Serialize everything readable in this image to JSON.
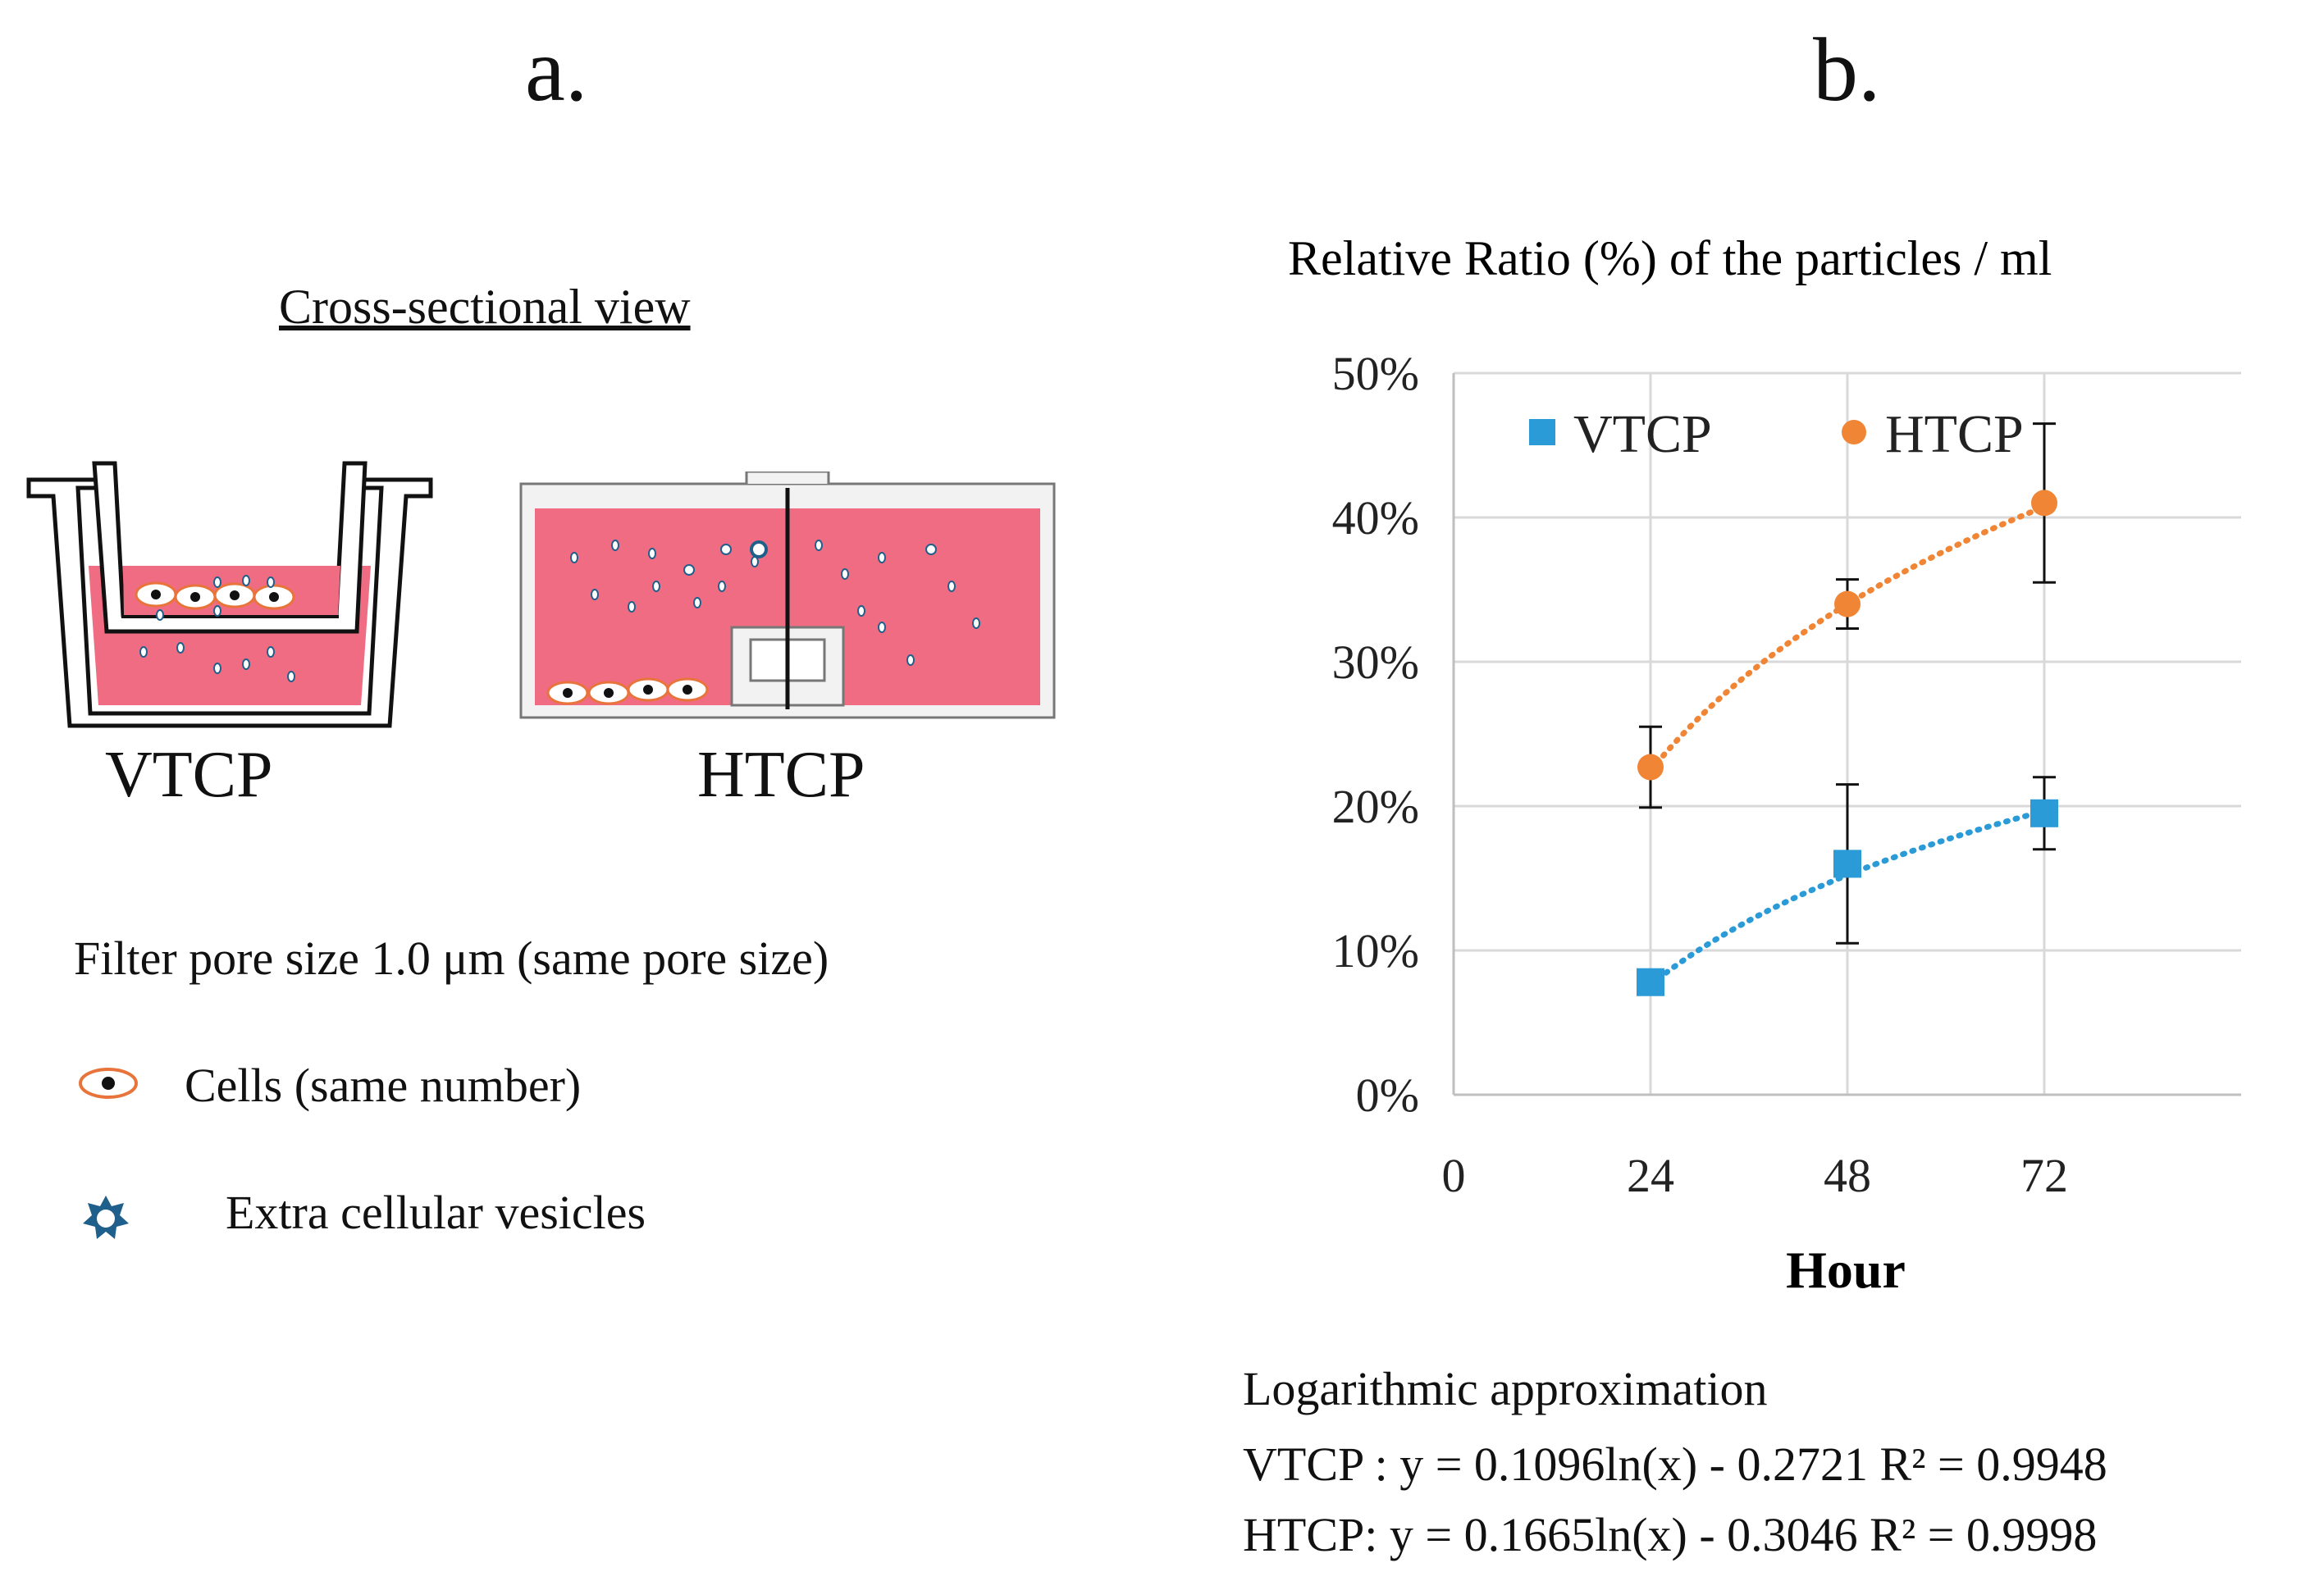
{
  "panel_a": {
    "letter": "a.",
    "view_title": "Cross-sectional  view",
    "vtcp_label": "VTCP",
    "htcp_label": "HTCP",
    "filter_text": "Filter  pore size  1.0 μm (same pore size)",
    "legend_cells": "Cells (same number)",
    "legend_ev": "Extra cellular vesicles",
    "colors": {
      "medium": "#f06c82",
      "ev": "#1f5f8b",
      "cell_ring": "#e8743b"
    }
  },
  "panel_b": {
    "letter": "b.",
    "equations": {
      "heading": "Logarithmic  approximation",
      "vtcp": "VTCP : y = 0.1096ln(x)  - 0.2721 R² = 0.9948",
      "htcp": "HTCP: y = 0.1665ln(x)  - 0.3046 R² = 0.9998"
    }
  },
  "chart_data": {
    "type": "scatter",
    "title": "Relative  Ratio (%)  of the  particles  / ml",
    "xlabel": "Hour",
    "ylabel": "",
    "xlim": [
      0,
      96
    ],
    "ylim": [
      0,
      0.5
    ],
    "x_ticks": [
      0,
      24,
      48,
      72
    ],
    "x_tick_labels": [
      "0",
      "24",
      "48",
      "72"
    ],
    "y_ticks": [
      0,
      0.1,
      0.2,
      0.3,
      0.4,
      0.5
    ],
    "y_tick_labels": [
      "0%",
      "10%",
      "20%",
      "30%",
      "40%",
      "50%"
    ],
    "grid": true,
    "legend": "top",
    "series": [
      {
        "name": "VTCP",
        "marker": "square",
        "color": "#2a9bd6",
        "x": [
          24,
          48,
          72
        ],
        "y": [
          0.078,
          0.16,
          0.195
        ],
        "err": [
          0.0,
          0.055,
          0.025
        ],
        "trend": {
          "a": 0.1096,
          "b": -0.2721
        }
      },
      {
        "name": "HTCP",
        "marker": "circle",
        "color": "#f08535",
        "x": [
          24,
          48,
          72
        ],
        "y": [
          0.227,
          0.34,
          0.41
        ],
        "err": [
          0.028,
          0.017,
          0.055
        ],
        "trend": {
          "a": 0.1665,
          "b": -0.3046
        }
      }
    ]
  }
}
